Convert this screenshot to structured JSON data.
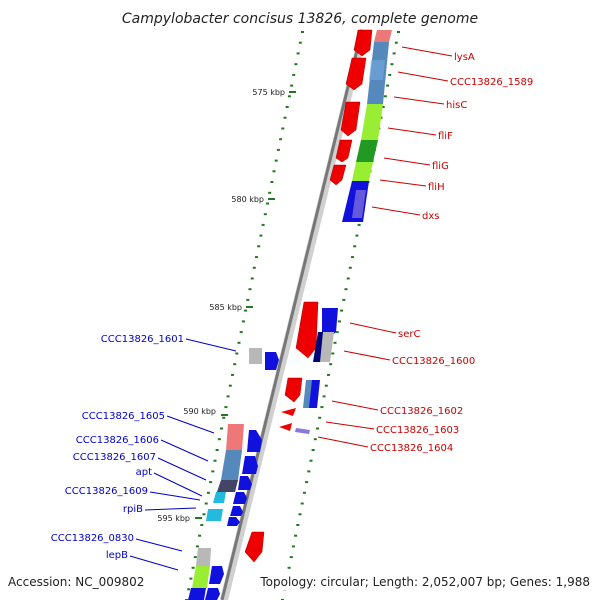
{
  "title": "Campylobacter concisus 13826, complete genome",
  "accession": "Accession: NC_009802",
  "topology": "Topology: circular; Length: 2,052,007 bp; Genes: 1,988",
  "colors": {
    "red": "#ee0000",
    "pink": "#ee7777",
    "steel": "#5588bb",
    "lightgreen": "#99ee33",
    "green": "#229922",
    "blue": "#1111dd",
    "navy": "#000077",
    "lavender": "#8877dd",
    "cyan": "#22bbdd",
    "gray": "#b8b8b8",
    "darkgray": "#555555",
    "tick": "#227722",
    "label_red": "#cc0000",
    "label_blue": "#0000cc"
  },
  "scale_ticks": [
    {
      "label": "575 kbp"
    },
    {
      "label": "580 kbp"
    },
    {
      "label": "585 kbp"
    },
    {
      "label": "590 kbp"
    },
    {
      "label": "595 kbp"
    }
  ],
  "genes_right": [
    {
      "name": "lysA",
      "color": "#ee0000",
      "strand": "-"
    },
    {
      "name": "CCC13826_1589",
      "color": "#5588bb",
      "strand": "+"
    },
    {
      "name": "hisC",
      "color": "#ee0000",
      "strand": "-"
    },
    {
      "name": "fliF",
      "color": "#99ee33",
      "strand": "+"
    },
    {
      "name": "fliG",
      "color": "#229922",
      "strand": "+"
    },
    {
      "name": "fliH",
      "color": "#99ee33",
      "strand": "+"
    },
    {
      "name": "dxs",
      "color": "#1111dd",
      "strand": "+"
    },
    {
      "name": "serC",
      "color": "#ee0000",
      "strand": "-"
    },
    {
      "name": "CCC13826_1600",
      "color": "#000077",
      "strand": "+"
    },
    {
      "name": "CCC13826_1602",
      "color": "#ee0000",
      "strand": "-"
    },
    {
      "name": "CCC13826_1603",
      "color": "#ee0000",
      "strand": "-"
    },
    {
      "name": "CCC13826_1604",
      "color": "#8877dd",
      "strand": "+"
    }
  ],
  "genes_left": [
    {
      "name": "CCC13826_1601",
      "color": "#1111dd",
      "strand": "+"
    },
    {
      "name": "CCC13826_1605",
      "color": "#1111dd",
      "strand": "+"
    },
    {
      "name": "CCC13826_1606",
      "color": "#1111dd",
      "strand": "+"
    },
    {
      "name": "CCC13826_1607",
      "color": "#1111dd",
      "strand": "+"
    },
    {
      "name": "apt",
      "color": "#1111dd",
      "strand": "+"
    },
    {
      "name": "CCC13826_1609",
      "color": "#1111dd",
      "strand": "+"
    },
    {
      "name": "rpiB",
      "color": "#1111dd",
      "strand": "+"
    },
    {
      "name": "CCC13826_0830",
      "color": "#1111dd",
      "strand": "+"
    },
    {
      "name": "lepB",
      "color": "#1111dd",
      "strand": "+"
    }
  ]
}
